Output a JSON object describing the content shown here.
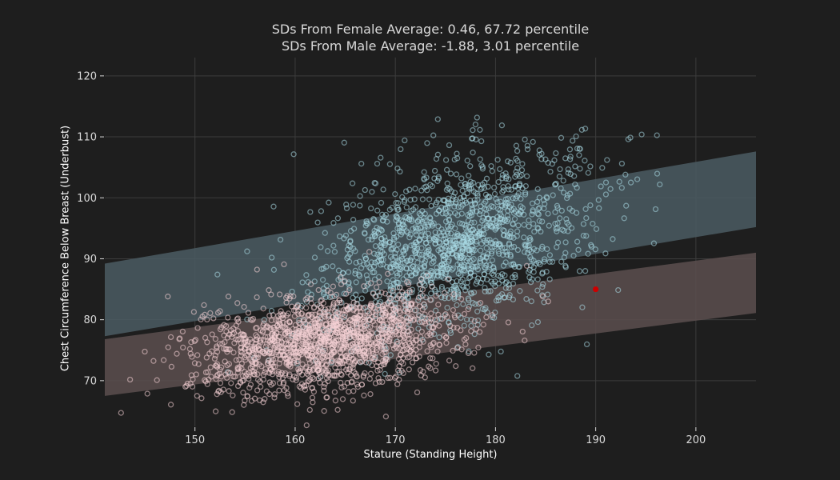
{
  "chart_data": {
    "type": "scatter",
    "title": "SDs From Female Average: 0.46, 67.72 percentile",
    "subtitle": "SDs From Male Average: -1.88, 3.01 percentile",
    "xlabel": "Stature (Standing Height)",
    "ylabel": "Chest Circumference Below Breast (Underbust)",
    "xlim": [
      141,
      206
    ],
    "ylim": [
      62.5,
      123
    ],
    "x_ticks": [
      150,
      160,
      170,
      180,
      190,
      200
    ],
    "y_ticks": [
      70,
      80,
      90,
      100,
      110,
      120
    ],
    "grid": true,
    "bands": [
      {
        "group": "male",
        "color": "#4a5a61",
        "x": [
          141,
          206
        ],
        "lower": [
          77.3,
          95.2
        ],
        "upper": [
          89.2,
          107.6
        ]
      },
      {
        "group": "female",
        "color": "#5a4d4d",
        "x": [
          141,
          206
        ],
        "lower": [
          67.5,
          81.1
        ],
        "upper": [
          76.8,
          91.0
        ]
      }
    ],
    "clusters": [
      {
        "group": "female",
        "color": "#f5d1d6",
        "center": [
          162.9,
          76.5
        ],
        "sd": [
          6.4,
          4.2
        ],
        "r": 0.32,
        "count": 1500
      },
      {
        "group": "male",
        "color": "#a9dbe6",
        "center": [
          175.8,
          92.5
        ],
        "sd": [
          6.8,
          7.5
        ],
        "r": 0.42,
        "count": 1400
      }
    ],
    "highlight_point": {
      "x": 190,
      "y": 85,
      "color": "#cc0000"
    },
    "colors": {
      "background": "#1e1e1e",
      "grid": "#3c3c3c",
      "tick_text": "#d8d8d8"
    }
  }
}
